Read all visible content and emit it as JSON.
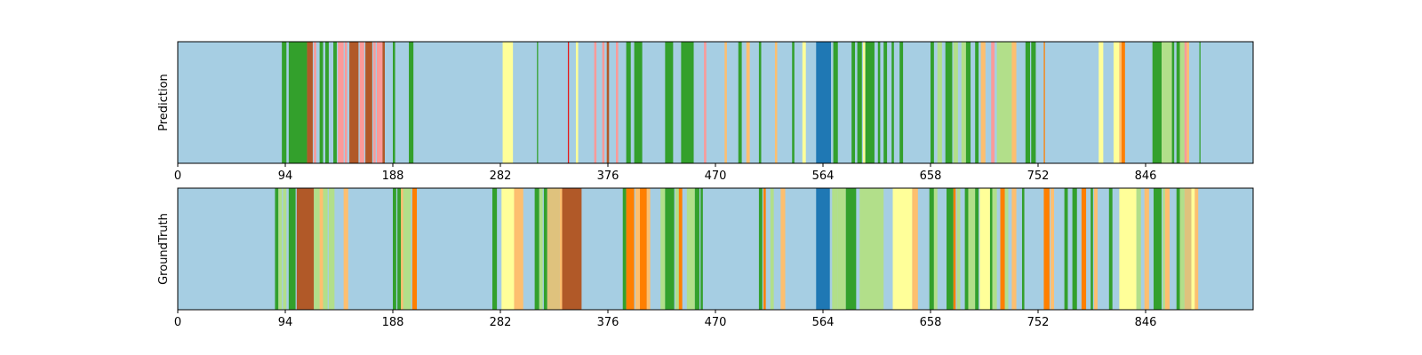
{
  "chart_data": [
    {
      "type": "bar",
      "ylabel": "Prediction",
      "xlim": [
        0,
        940
      ],
      "xticks": [
        0,
        94,
        188,
        282,
        376,
        470,
        564,
        658,
        752,
        846
      ],
      "background": "#a6cee3",
      "segments": [
        {
          "start": 91,
          "end": 95,
          "color": "#33a02c"
        },
        {
          "start": 97,
          "end": 113,
          "color": "#33a02c"
        },
        {
          "start": 113,
          "end": 118,
          "color": "#b15928"
        },
        {
          "start": 119,
          "end": 121,
          "color": "#fb9a99"
        },
        {
          "start": 124,
          "end": 127,
          "color": "#33a02c"
        },
        {
          "start": 129,
          "end": 132,
          "color": "#33a02c"
        },
        {
          "start": 136,
          "end": 139,
          "color": "#33a02c"
        },
        {
          "start": 140,
          "end": 145,
          "color": "#fb9a99"
        },
        {
          "start": 146,
          "end": 148,
          "color": "#fb9a99"
        },
        {
          "start": 150,
          "end": 158,
          "color": "#b15928"
        },
        {
          "start": 159,
          "end": 163,
          "color": "#fb9a99"
        },
        {
          "start": 164,
          "end": 170,
          "color": "#b15928"
        },
        {
          "start": 171,
          "end": 173,
          "color": "#fb9a99"
        },
        {
          "start": 174,
          "end": 179,
          "color": "#fb9a99"
        },
        {
          "start": 179,
          "end": 181,
          "color": "#b15928"
        },
        {
          "start": 188,
          "end": 190,
          "color": "#33a02c"
        },
        {
          "start": 202,
          "end": 206,
          "color": "#33a02c"
        },
        {
          "start": 284,
          "end": 293,
          "color": "#ffff99"
        },
        {
          "start": 314,
          "end": 315,
          "color": "#33a02c"
        },
        {
          "start": 341,
          "end": 342,
          "color": "#e31a1c"
        },
        {
          "start": 348,
          "end": 350,
          "color": "#ffff99"
        },
        {
          "start": 364,
          "end": 366,
          "color": "#fb9a99"
        },
        {
          "start": 371,
          "end": 373,
          "color": "#fb9a99"
        },
        {
          "start": 375,
          "end": 377,
          "color": "#b15928"
        },
        {
          "start": 383,
          "end": 385,
          "color": "#fb9a99"
        },
        {
          "start": 392,
          "end": 396,
          "color": "#33a02c"
        },
        {
          "start": 399,
          "end": 406,
          "color": "#33a02c"
        },
        {
          "start": 426,
          "end": 433,
          "color": "#33a02c"
        },
        {
          "start": 440,
          "end": 442,
          "color": "#33a02c"
        },
        {
          "start": 441,
          "end": 451,
          "color": "#33a02c"
        },
        {
          "start": 460,
          "end": 462,
          "color": "#fb9a99"
        },
        {
          "start": 478,
          "end": 480,
          "color": "#fdbf6f"
        },
        {
          "start": 490,
          "end": 493,
          "color": "#33a02c"
        },
        {
          "start": 497,
          "end": 500,
          "color": "#fdbf6f"
        },
        {
          "start": 508,
          "end": 510,
          "color": "#33a02c"
        },
        {
          "start": 522,
          "end": 524,
          "color": "#fdbf6f"
        },
        {
          "start": 537,
          "end": 539,
          "color": "#33a02c"
        },
        {
          "start": 546,
          "end": 549,
          "color": "#ffff99"
        },
        {
          "start": 558,
          "end": 571,
          "color": "#1f78b4"
        },
        {
          "start": 573,
          "end": 577,
          "color": "#33a02c"
        },
        {
          "start": 589,
          "end": 592,
          "color": "#33a02c"
        },
        {
          "start": 594,
          "end": 598,
          "color": "#33a02c"
        },
        {
          "start": 599,
          "end": 601,
          "color": "#ffff99"
        },
        {
          "start": 601,
          "end": 609,
          "color": "#33a02c"
        },
        {
          "start": 612,
          "end": 614,
          "color": "#33a02c"
        },
        {
          "start": 617,
          "end": 620,
          "color": "#33a02c"
        },
        {
          "start": 624,
          "end": 626,
          "color": "#33a02c"
        },
        {
          "start": 631,
          "end": 634,
          "color": "#33a02c"
        },
        {
          "start": 658,
          "end": 661,
          "color": "#33a02c"
        },
        {
          "start": 664,
          "end": 668,
          "color": "#b2df8a"
        },
        {
          "start": 671,
          "end": 677,
          "color": "#33a02c"
        },
        {
          "start": 678,
          "end": 682,
          "color": "#b2df8a"
        },
        {
          "start": 685,
          "end": 689,
          "color": "#b2df8a"
        },
        {
          "start": 689,
          "end": 693,
          "color": "#33a02c"
        },
        {
          "start": 697,
          "end": 700,
          "color": "#33a02c"
        },
        {
          "start": 702,
          "end": 706,
          "color": "#fdbf6f"
        },
        {
          "start": 711,
          "end": 714,
          "color": "#fb9a99"
        },
        {
          "start": 716,
          "end": 729,
          "color": "#b2df8a"
        },
        {
          "start": 729,
          "end": 733,
          "color": "#fdbf6f"
        },
        {
          "start": 741,
          "end": 745,
          "color": "#33a02c"
        },
        {
          "start": 746,
          "end": 750,
          "color": "#33a02c"
        },
        {
          "start": 757,
          "end": 758,
          "color": "#ff7f00"
        },
        {
          "start": 805,
          "end": 809,
          "color": "#ffff99"
        },
        {
          "start": 818,
          "end": 823,
          "color": "#ffff99"
        },
        {
          "start": 823,
          "end": 825,
          "color": "#fdbf6f"
        },
        {
          "start": 825,
          "end": 828,
          "color": "#ff7f00"
        },
        {
          "start": 852,
          "end": 860,
          "color": "#33a02c"
        },
        {
          "start": 860,
          "end": 869,
          "color": "#b2df8a"
        },
        {
          "start": 869,
          "end": 871,
          "color": "#33a02c"
        },
        {
          "start": 873,
          "end": 876,
          "color": "#33a02c"
        },
        {
          "start": 876,
          "end": 880,
          "color": "#b2df8a"
        },
        {
          "start": 880,
          "end": 882,
          "color": "#fb9a99"
        },
        {
          "start": 882,
          "end": 884,
          "color": "#fdbf6f"
        },
        {
          "start": 893,
          "end": 894,
          "color": "#33a02c"
        }
      ]
    },
    {
      "type": "bar",
      "ylabel": "GroundTruth",
      "xlim": [
        0,
        940
      ],
      "xticks": [
        0,
        94,
        188,
        282,
        376,
        470,
        564,
        658,
        752,
        846
      ],
      "background": "#a6cee3",
      "segments": [
        {
          "start": 85,
          "end": 88,
          "color": "#33a02c"
        },
        {
          "start": 88,
          "end": 91,
          "color": "#b2df8a"
        },
        {
          "start": 92,
          "end": 95,
          "color": "#b2df8a"
        },
        {
          "start": 97,
          "end": 103,
          "color": "#33a02c"
        },
        {
          "start": 104,
          "end": 119,
          "color": "#b15928"
        },
        {
          "start": 119,
          "end": 124,
          "color": "#b2df8a"
        },
        {
          "start": 124,
          "end": 127,
          "color": "#fdbf6f"
        },
        {
          "start": 127,
          "end": 131,
          "color": "#b2df8a"
        },
        {
          "start": 132,
          "end": 137,
          "color": "#b2df8a"
        },
        {
          "start": 145,
          "end": 149,
          "color": "#fdbf6f"
        },
        {
          "start": 188,
          "end": 191,
          "color": "#33a02c"
        },
        {
          "start": 192,
          "end": 195,
          "color": "#33a02c"
        },
        {
          "start": 195,
          "end": 197,
          "color": "#fdbf6f"
        },
        {
          "start": 197,
          "end": 204,
          "color": "#b2df8a"
        },
        {
          "start": 205,
          "end": 209,
          "color": "#ff7f00"
        },
        {
          "start": 275,
          "end": 279,
          "color": "#33a02c"
        },
        {
          "start": 283,
          "end": 294,
          "color": "#ffff99"
        },
        {
          "start": 294,
          "end": 302,
          "color": "#fdbf6f"
        },
        {
          "start": 312,
          "end": 316,
          "color": "#33a02c"
        },
        {
          "start": 316,
          "end": 319,
          "color": "#b2df8a"
        },
        {
          "start": 320,
          "end": 323,
          "color": "#33a02c"
        },
        {
          "start": 323,
          "end": 334,
          "color": "#dfc27d"
        },
        {
          "start": 334,
          "end": 336,
          "color": "#fdbf6f"
        },
        {
          "start": 336,
          "end": 353,
          "color": "#b15928"
        },
        {
          "start": 389,
          "end": 392,
          "color": "#33a02c"
        },
        {
          "start": 392,
          "end": 399,
          "color": "#ff7f00"
        },
        {
          "start": 400,
          "end": 404,
          "color": "#fdbf6f"
        },
        {
          "start": 404,
          "end": 410,
          "color": "#ff7f00"
        },
        {
          "start": 410,
          "end": 413,
          "color": "#fdbf6f"
        },
        {
          "start": 422,
          "end": 426,
          "color": "#b2df8a"
        },
        {
          "start": 426,
          "end": 434,
          "color": "#33a02c"
        },
        {
          "start": 435,
          "end": 438,
          "color": "#b2df8a"
        },
        {
          "start": 438,
          "end": 441,
          "color": "#ff7f00"
        },
        {
          "start": 445,
          "end": 452,
          "color": "#b2df8a"
        },
        {
          "start": 452,
          "end": 456,
          "color": "#33a02c"
        },
        {
          "start": 457,
          "end": 459,
          "color": "#33a02c"
        },
        {
          "start": 508,
          "end": 511,
          "color": "#33a02c"
        },
        {
          "start": 512,
          "end": 514,
          "color": "#ff7f00"
        },
        {
          "start": 518,
          "end": 521,
          "color": "#b2df8a"
        },
        {
          "start": 527,
          "end": 531,
          "color": "#fdbf6f"
        },
        {
          "start": 558,
          "end": 570,
          "color": "#1f78b4"
        },
        {
          "start": 572,
          "end": 577,
          "color": "#b2df8a"
        },
        {
          "start": 577,
          "end": 584,
          "color": "#b2df8a"
        },
        {
          "start": 584,
          "end": 593,
          "color": "#33a02c"
        },
        {
          "start": 596,
          "end": 617,
          "color": "#b2df8a"
        },
        {
          "start": 625,
          "end": 642,
          "color": "#ffff99"
        },
        {
          "start": 642,
          "end": 647,
          "color": "#fdbf6f"
        },
        {
          "start": 657,
          "end": 661,
          "color": "#33a02c"
        },
        {
          "start": 661,
          "end": 664,
          "color": "#b2df8a"
        },
        {
          "start": 672,
          "end": 678,
          "color": "#33a02c"
        },
        {
          "start": 678,
          "end": 680,
          "color": "#ff7f00"
        },
        {
          "start": 681,
          "end": 684,
          "color": "#b2df8a"
        },
        {
          "start": 688,
          "end": 691,
          "color": "#33a02c"
        },
        {
          "start": 691,
          "end": 697,
          "color": "#b2df8a"
        },
        {
          "start": 697,
          "end": 700,
          "color": "#33a02c"
        },
        {
          "start": 701,
          "end": 710,
          "color": "#ffff99"
        },
        {
          "start": 710,
          "end": 712,
          "color": "#33a02c"
        },
        {
          "start": 712,
          "end": 716,
          "color": "#b2df8a"
        },
        {
          "start": 719,
          "end": 723,
          "color": "#ff7f00"
        },
        {
          "start": 723,
          "end": 726,
          "color": "#b2df8a"
        },
        {
          "start": 729,
          "end": 733,
          "color": "#fdbf6f"
        },
        {
          "start": 738,
          "end": 740,
          "color": "#33a02c"
        },
        {
          "start": 757,
          "end": 762,
          "color": "#ff7f00"
        },
        {
          "start": 763,
          "end": 766,
          "color": "#fdbf6f"
        },
        {
          "start": 775,
          "end": 778,
          "color": "#33a02c"
        },
        {
          "start": 782,
          "end": 786,
          "color": "#33a02c"
        },
        {
          "start": 790,
          "end": 794,
          "color": "#ff7f00"
        },
        {
          "start": 798,
          "end": 800,
          "color": "#33a02c"
        },
        {
          "start": 801,
          "end": 804,
          "color": "#fdbf6f"
        },
        {
          "start": 814,
          "end": 817,
          "color": "#33a02c"
        },
        {
          "start": 823,
          "end": 838,
          "color": "#ffff99"
        },
        {
          "start": 838,
          "end": 842,
          "color": "#b2df8a"
        },
        {
          "start": 845,
          "end": 849,
          "color": "#fdbf6f"
        },
        {
          "start": 853,
          "end": 860,
          "color": "#33a02c"
        },
        {
          "start": 861,
          "end": 863,
          "color": "#b2df8a"
        },
        {
          "start": 863,
          "end": 867,
          "color": "#fdbf6f"
        },
        {
          "start": 873,
          "end": 876,
          "color": "#33a02c"
        },
        {
          "start": 876,
          "end": 880,
          "color": "#b2df8a"
        },
        {
          "start": 880,
          "end": 886,
          "color": "#dfc27d"
        },
        {
          "start": 886,
          "end": 889,
          "color": "#ffff99"
        },
        {
          "start": 889,
          "end": 892,
          "color": "#fdbf6f"
        }
      ]
    }
  ]
}
